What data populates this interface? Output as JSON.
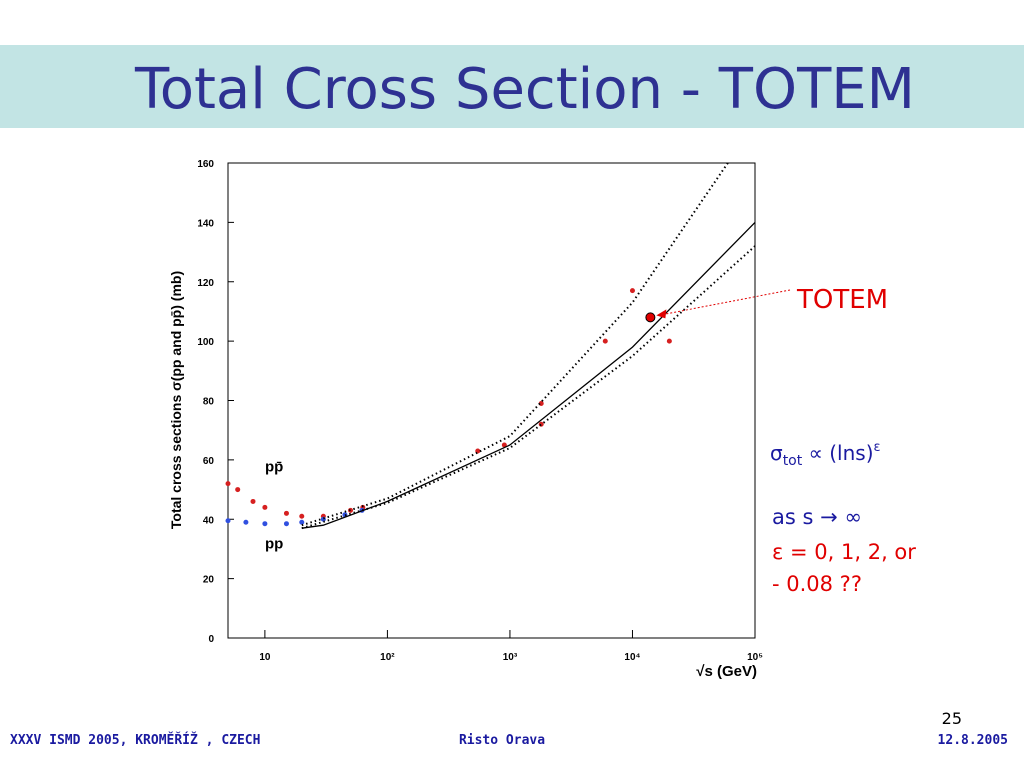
{
  "slide": {
    "title": "Total Cross Section - TOTEM",
    "formula": {
      "sigma": "σ",
      "sub": "tot",
      "body": " ∝ (lns)",
      "sup": "ε"
    },
    "notes": [
      "as s → ∞",
      "ε = 0, 1, 2, or",
      "- 0.08 ??"
    ],
    "page": "25",
    "footer": {
      "left": "XXXV ISMD 2005, KROMĚŘÍŽ , CZECH",
      "center": "Risto Orava",
      "right": "12.8.2005"
    }
  },
  "chart_data": {
    "type": "scatter",
    "xlabel": "√s (GeV)",
    "ylabel": "Total cross sections σ(pp and pp̄) (mb)",
    "xscale": "log",
    "xlim": [
      5,
      100000
    ],
    "xticks": [
      {
        "value": 10,
        "label": "10"
      },
      {
        "value": 100,
        "label": "10²"
      },
      {
        "value": 1000,
        "label": "10³"
      },
      {
        "value": 10000,
        "label": "10⁴"
      },
      {
        "value": 100000,
        "label": "10⁵"
      }
    ],
    "ylim": [
      0,
      160
    ],
    "yticks": [
      0,
      20,
      40,
      60,
      80,
      100,
      120,
      140,
      160
    ],
    "series": [
      {
        "name": "pp̄",
        "style": "markers",
        "color": "#d62020",
        "x": [
          5,
          6,
          8,
          10,
          15,
          20,
          30,
          50,
          63,
          546,
          900,
          1800,
          1800,
          6000,
          10000,
          20000
        ],
        "values": [
          52,
          50,
          46,
          44,
          42,
          41,
          41,
          43,
          44,
          63,
          65,
          79,
          72,
          100,
          117,
          100
        ]
      },
      {
        "name": "pp",
        "style": "markers",
        "color": "#3050e0",
        "x": [
          5,
          7,
          10,
          15,
          20,
          30,
          45,
          62
        ],
        "values": [
          39.5,
          39,
          38.5,
          38.5,
          39,
          40,
          41.5,
          43
        ]
      },
      {
        "style": "solid",
        "color": "#000000",
        "x": [
          20,
          30,
          100,
          1000,
          10000,
          100000
        ],
        "values": [
          37,
          38,
          46,
          65,
          98,
          140
        ]
      },
      {
        "style": "dotted",
        "color": "#000000",
        "x": [
          20,
          100,
          1000,
          10000,
          60000
        ],
        "values": [
          38,
          47,
          68,
          113,
          160
        ]
      },
      {
        "style": "dotted",
        "color": "#000000",
        "x": [
          20,
          100,
          1000,
          10000,
          100000
        ],
        "values": [
          37,
          45.5,
          64,
          95,
          132
        ]
      }
    ],
    "totem": {
      "label": "TOTEM",
      "x": 14000,
      "value": 108,
      "color": "#e00000"
    }
  }
}
